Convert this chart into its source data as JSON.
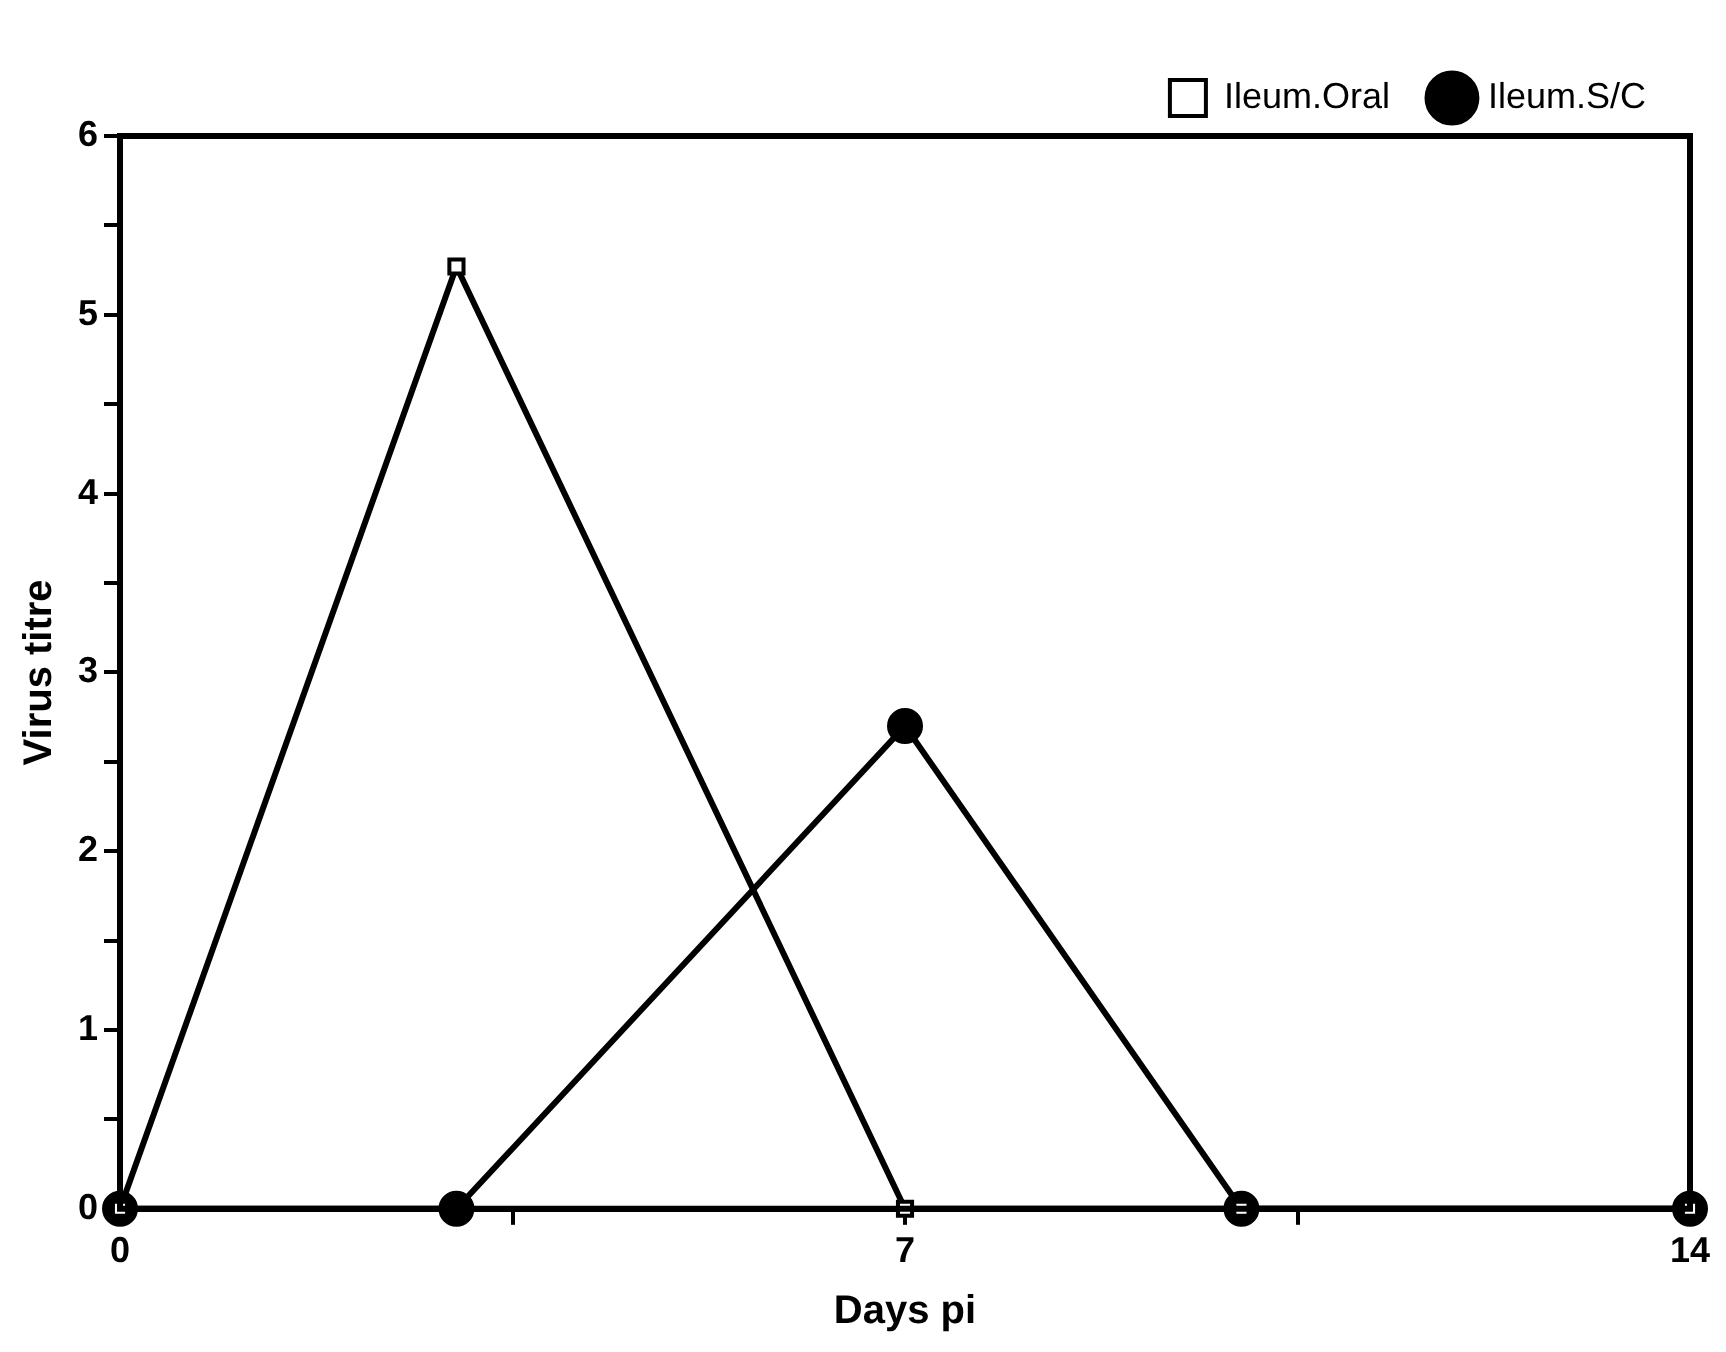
{
  "chart_data": {
    "type": "line",
    "xlabel": "Days pi",
    "ylabel": "Virus titre",
    "x": [
      0,
      3,
      7,
      10,
      14
    ],
    "series": [
      {
        "name": "Ileum.Oral",
        "color": "#000000",
        "marker": "square",
        "values": [
          0,
          5.27,
          0,
          0,
          0
        ]
      },
      {
        "name": "Ileum.S/C",
        "color": "#000000",
        "marker": "circle",
        "values": [
          0,
          0,
          2.7,
          0,
          0
        ]
      }
    ],
    "xlim": [
      0,
      14
    ],
    "xticks": [
      0,
      {
        "value": 3.5,
        "label": null
      },
      7,
      {
        "value": 10.5,
        "label": null
      },
      14
    ],
    "ylim": [
      0,
      6
    ],
    "yticks": [
      0,
      {
        "value": 0.5,
        "label": null
      },
      1,
      {
        "value": 1.5,
        "label": null
      },
      2,
      {
        "value": 2.5,
        "label": null
      },
      3,
      {
        "value": 3.5,
        "label": null
      },
      4,
      {
        "value": 4.5,
        "label": null
      },
      5,
      {
        "value": 5.5,
        "label": null
      },
      6
    ],
    "grid": false,
    "legend": "top right",
    "line_style": "solid"
  }
}
